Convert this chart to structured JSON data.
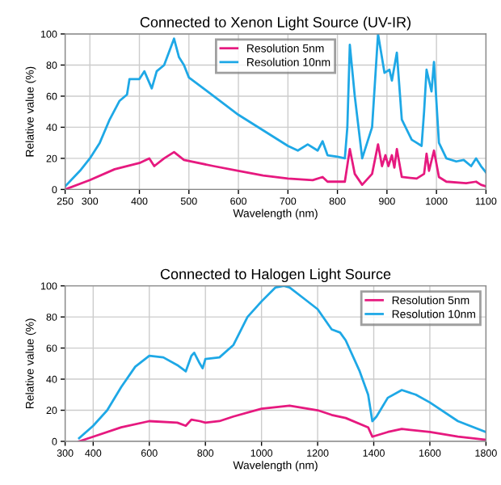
{
  "chart_data": [
    {
      "type": "line",
      "title": "Connected to Xenon Light Source (UV-IR)",
      "xlabel": "Wavelength (nm)",
      "ylabel": "Relative value (%)",
      "xlim": [
        250,
        1100
      ],
      "xticks": [
        250,
        300,
        400,
        500,
        600,
        700,
        800,
        900,
        1000,
        1100
      ],
      "ylim": [
        0,
        100
      ],
      "yticks": [
        0,
        20,
        40,
        60,
        80,
        100
      ],
      "grid": true,
      "legend": "top",
      "series": [
        {
          "name": "Resolution 5nm",
          "color": "#e6197f",
          "x": [
            250,
            300,
            350,
            400,
            420,
            430,
            450,
            470,
            490,
            550,
            600,
            650,
            700,
            750,
            770,
            780,
            815,
            825,
            835,
            850,
            870,
            882,
            890,
            897,
            903,
            910,
            915,
            920,
            930,
            960,
            975,
            980,
            985,
            995,
            1005,
            1020,
            1060,
            1080,
            1090,
            1100
          ],
          "values": [
            0,
            6,
            13,
            17,
            20,
            15,
            20,
            24,
            19,
            15,
            12,
            9,
            7,
            6,
            8,
            5,
            5,
            26,
            10,
            3,
            10,
            29,
            15,
            22,
            15,
            22,
            14,
            26,
            8,
            7,
            10,
            23,
            12,
            25,
            8,
            5,
            4,
            5,
            3,
            2
          ]
        },
        {
          "name": "Resolution 10nm",
          "color": "#1ea8e6",
          "x": [
            250,
            280,
            300,
            320,
            340,
            360,
            375,
            380,
            400,
            410,
            425,
            435,
            450,
            470,
            480,
            490,
            500,
            550,
            600,
            650,
            700,
            720,
            740,
            760,
            770,
            780,
            800,
            815,
            820,
            825,
            835,
            850,
            870,
            882,
            895,
            905,
            910,
            920,
            930,
            950,
            960,
            970,
            975,
            980,
            990,
            995,
            1005,
            1020,
            1040,
            1055,
            1070,
            1080,
            1090,
            1100
          ],
          "values": [
            2,
            12,
            20,
            30,
            45,
            57,
            61,
            71,
            71,
            76,
            65,
            76,
            80,
            97,
            85,
            80,
            72,
            60,
            48,
            38,
            28,
            25,
            29,
            25,
            31,
            22,
            21,
            20,
            40,
            93,
            60,
            20,
            40,
            100,
            75,
            77,
            70,
            88,
            45,
            32,
            30,
            28,
            50,
            77,
            63,
            82,
            30,
            20,
            18,
            19,
            15,
            20,
            15,
            11
          ]
        }
      ]
    },
    {
      "type": "line",
      "title": "Connected to Halogen Light Source",
      "xlabel": "Wavelength (nm)",
      "ylabel": "Relative value (%)",
      "xlim": [
        300,
        1800
      ],
      "xticks": [
        300,
        400,
        600,
        800,
        1000,
        1200,
        1400,
        1600,
        1800
      ],
      "ylim": [
        0,
        100
      ],
      "yticks": [
        0,
        20,
        40,
        60,
        80,
        100
      ],
      "grid": true,
      "legend": "top right",
      "series": [
        {
          "name": "Resolution 5nm",
          "color": "#e6197f",
          "x": [
            350,
            400,
            500,
            600,
            700,
            730,
            750,
            780,
            800,
            850,
            900,
            1000,
            1100,
            1200,
            1250,
            1300,
            1380,
            1395,
            1450,
            1500,
            1600,
            1700,
            1800
          ],
          "values": [
            0,
            3,
            9,
            13,
            12,
            10,
            14,
            13,
            12,
            13,
            16,
            21,
            23,
            20,
            17,
            15,
            9,
            3,
            6,
            8,
            6,
            3,
            1
          ]
        },
        {
          "name": "Resolution 10nm",
          "color": "#1ea8e6",
          "x": [
            350,
            400,
            450,
            500,
            550,
            600,
            650,
            700,
            730,
            750,
            760,
            780,
            790,
            800,
            850,
            900,
            950,
            1000,
            1050,
            1080,
            1100,
            1150,
            1200,
            1250,
            1280,
            1300,
            1350,
            1380,
            1395,
            1410,
            1450,
            1500,
            1550,
            1600,
            1700,
            1800
          ],
          "values": [
            2,
            10,
            20,
            35,
            48,
            55,
            54,
            49,
            45,
            55,
            57,
            50,
            47,
            53,
            54,
            62,
            80,
            90,
            99,
            100,
            99,
            92,
            85,
            72,
            70,
            65,
            45,
            30,
            13,
            16,
            28,
            33,
            30,
            25,
            13,
            6
          ]
        }
      ]
    }
  ]
}
